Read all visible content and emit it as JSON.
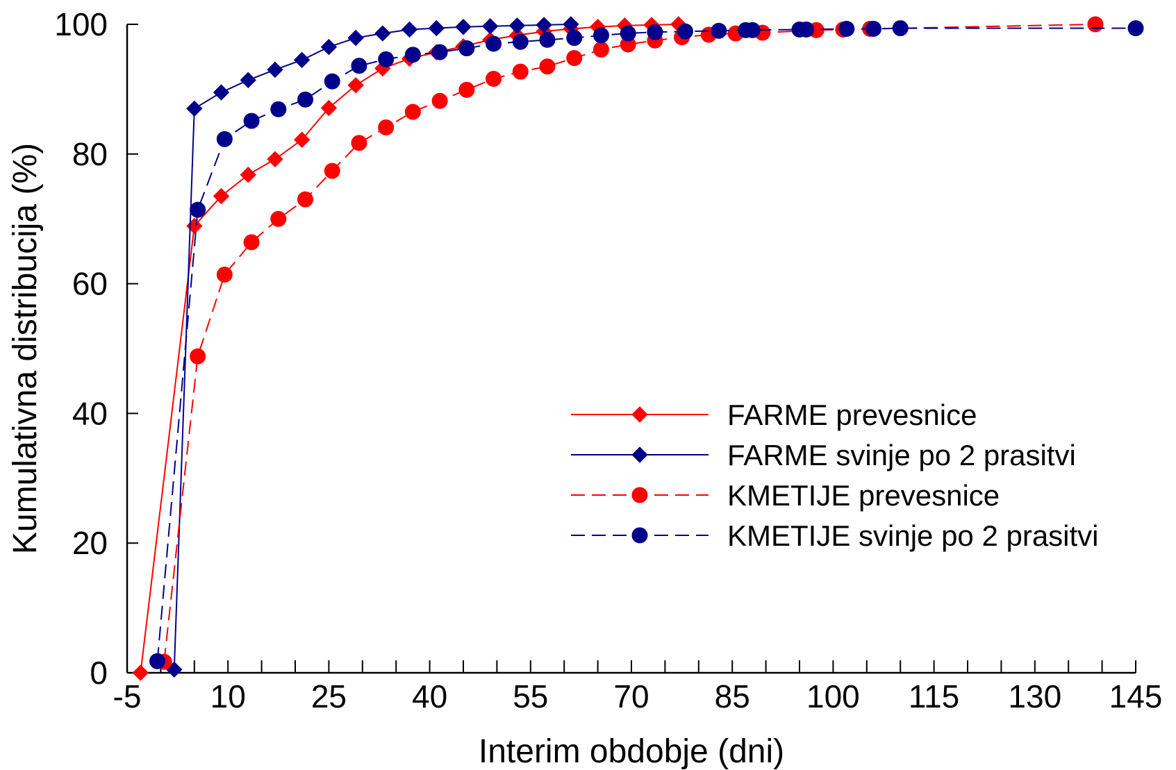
{
  "chart_data": {
    "type": "line",
    "xlabel": "Interim obdobje (dni)",
    "ylabel": "Kumulativna distribucija (%)",
    "xlim": [
      -5,
      145
    ],
    "ylim": [
      0,
      100
    ],
    "x_ticks": [
      -5,
      10,
      25,
      40,
      55,
      70,
      85,
      100,
      115,
      130,
      145
    ],
    "x_minor_step": 5,
    "y_ticks": [
      0,
      20,
      40,
      60,
      80,
      100
    ],
    "grid": false,
    "legend_position": "center-right",
    "series": [
      {
        "name": "FARME prevesnice",
        "color": "#ff0000",
        "marker": "diamond",
        "line_style": "solid",
        "x": [
          -3,
          5,
          9,
          13,
          17,
          21,
          25,
          29,
          33,
          37,
          41,
          45,
          49,
          53,
          57,
          61,
          65,
          69,
          73,
          77
        ],
        "y": [
          0,
          68.9,
          73.5,
          76.8,
          79.2,
          82.2,
          87.1,
          90.6,
          93.2,
          94.7,
          95.7,
          96.6,
          97.6,
          98.3,
          98.9,
          99.3,
          99.6,
          99.8,
          99.9,
          100
        ]
      },
      {
        "name": "FARME svinje po 2 prasitvi",
        "color": "#00008b",
        "marker": "diamond",
        "line_style": "solid",
        "x": [
          2,
          5,
          9,
          13,
          17,
          21,
          25,
          29,
          33,
          37,
          41,
          45,
          49,
          53,
          57,
          61
        ],
        "y": [
          0.5,
          87.0,
          89.5,
          91.4,
          93.0,
          94.5,
          96.5,
          97.9,
          98.6,
          99.2,
          99.4,
          99.6,
          99.7,
          99.8,
          99.9,
          100
        ]
      },
      {
        "name": "KMETIJE prevesnice",
        "color": "#ff0000",
        "marker": "circle",
        "line_style": "dashed",
        "x": [
          0.5,
          5.5,
          9.5,
          13.5,
          17.5,
          21.5,
          25.5,
          29.5,
          33.5,
          37.5,
          41.5,
          45.5,
          49.5,
          53.5,
          57.5,
          61.5,
          65.5,
          69.5,
          73.5,
          77.5,
          81.5,
          85.5,
          89.5,
          97.5,
          101.5,
          105.5,
          139
        ],
        "y": [
          1.7,
          48.8,
          61.4,
          66.4,
          70.0,
          73.0,
          77.4,
          81.7,
          84.1,
          86.5,
          88.2,
          89.9,
          91.6,
          92.7,
          93.5,
          94.8,
          96.1,
          96.9,
          97.5,
          98.0,
          98.4,
          98.6,
          98.7,
          99.1,
          99.2,
          99.3,
          100
        ]
      },
      {
        "name": "KMETIJE svinje po 2 prasitvi",
        "color": "#00008b",
        "marker": "circle",
        "line_style": "dashed",
        "x": [
          -0.5,
          5.5,
          9.5,
          13.5,
          17.5,
          21.5,
          25.5,
          29.5,
          33.5,
          37.5,
          41.5,
          45.5,
          49.5,
          53.5,
          57.5,
          61.5,
          65.5,
          69.5,
          73.5,
          78,
          83,
          87,
          88,
          95,
          96,
          102,
          106,
          110,
          145
        ],
        "y": [
          1.8,
          71.4,
          82.3,
          85.1,
          86.9,
          88.4,
          91.2,
          93.6,
          94.6,
          95.3,
          95.7,
          96.3,
          97.0,
          97.3,
          97.6,
          97.9,
          98.3,
          98.6,
          98.8,
          98.9,
          99.0,
          99.1,
          99.1,
          99.2,
          99.2,
          99.3,
          99.3,
          99.4,
          99.4
        ]
      }
    ]
  }
}
